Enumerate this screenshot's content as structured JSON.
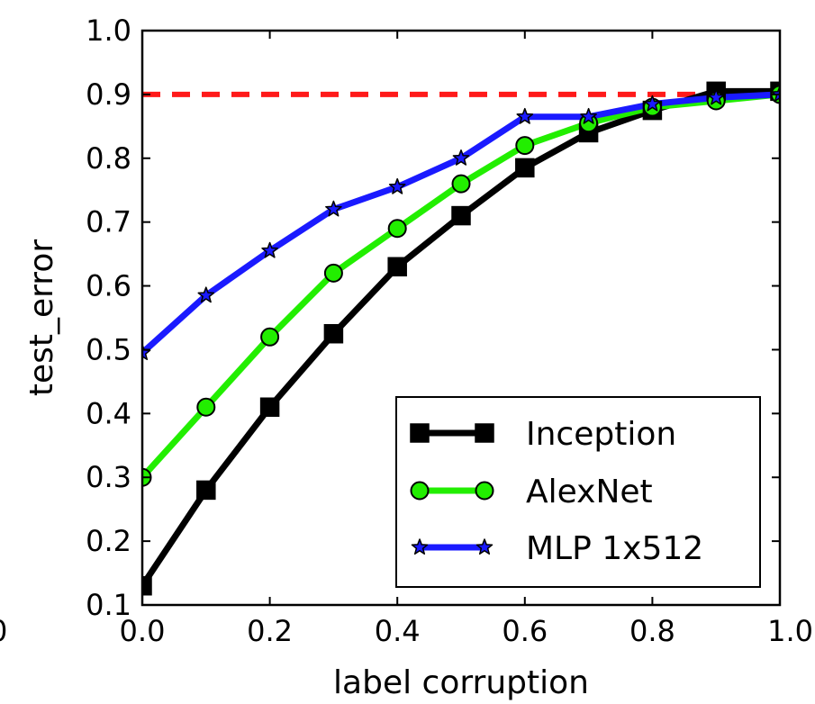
{
  "chart_data": {
    "type": "line",
    "title": "",
    "xlabel": "label corruption",
    "ylabel": "test_error",
    "xlim": [
      0.0,
      1.0
    ],
    "ylim": [
      0.1,
      1.0
    ],
    "x_ticks": [
      "0.0",
      "0.2",
      "0.4",
      "0.6",
      "0.8",
      "1.0"
    ],
    "x_tick_values": [
      0.0,
      0.2,
      0.4,
      0.6,
      0.8,
      1.0
    ],
    "clipped_left_tick_label": "0",
    "y_ticks": [
      "0.1",
      "0.2",
      "0.3",
      "0.4",
      "0.5",
      "0.6",
      "0.7",
      "0.8",
      "0.9",
      "1.0"
    ],
    "y_tick_values": [
      0.1,
      0.2,
      0.3,
      0.4,
      0.5,
      0.6,
      0.7,
      0.8,
      0.9,
      1.0
    ],
    "grid": false,
    "legend_position": "bottom-right",
    "x": [
      0.0,
      0.1,
      0.2,
      0.3,
      0.4,
      0.5,
      0.6,
      0.7,
      0.8,
      0.9,
      1.0
    ],
    "series": [
      {
        "name": "Inception",
        "color": "#000000",
        "marker": "square",
        "marker_fill": "#000000",
        "values": [
          0.13,
          0.28,
          0.41,
          0.525,
          0.63,
          0.71,
          0.785,
          0.84,
          0.875,
          0.905,
          0.905
        ]
      },
      {
        "name": "AlexNet",
        "color": "#22ee00",
        "marker": "circle",
        "marker_fill": "#22ee00",
        "values": [
          0.3,
          0.41,
          0.52,
          0.62,
          0.69,
          0.76,
          0.82,
          0.855,
          0.88,
          0.89,
          0.9
        ]
      },
      {
        "name": "MLP 1x512",
        "color": "#1a1aff",
        "marker": "star",
        "marker_fill": "#1a1aff",
        "values": [
          0.495,
          0.585,
          0.655,
          0.72,
          0.755,
          0.8,
          0.865,
          0.865,
          0.885,
          0.895,
          0.9
        ]
      }
    ],
    "reference_line": {
      "y": 0.9,
      "color": "#ff1a1a",
      "style": "dashed"
    }
  }
}
